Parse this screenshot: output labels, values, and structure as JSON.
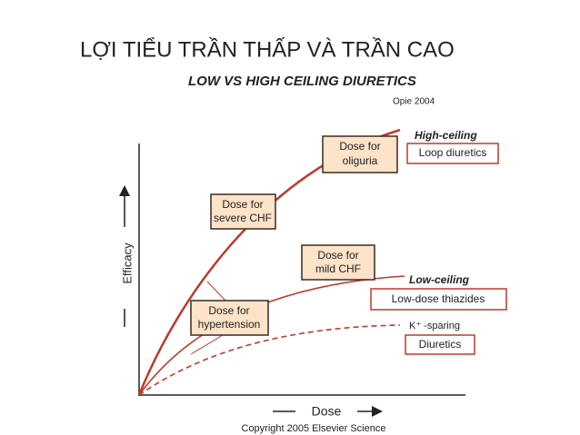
{
  "header": {
    "title": "LỢI TIỂU TRẦN THẤP VÀ TRẦN CAO"
  },
  "figure": {
    "title": "LOW VS HIGH CEILING DIURETICS",
    "source": "Opie 2004",
    "y_axis_label": "Efficacy",
    "x_axis_label": "Dose",
    "copyright": "Copyright 2005 Elsevier Science",
    "dose_boxes": [
      {
        "lines": [
          "Dose for",
          "oliguria"
        ]
      },
      {
        "lines": [
          "Dose for",
          "severe CHF"
        ]
      },
      {
        "lines": [
          "Dose for",
          "mild CHF"
        ]
      },
      {
        "lines": [
          "Dose for",
          "hypertension"
        ]
      }
    ],
    "curves": [
      {
        "label": "High-ceiling",
        "box": "Loop diuretics"
      },
      {
        "label": "Low-ceiling",
        "box": "Low-dose thiazides"
      },
      {
        "label": "K⁺ -sparing",
        "box": "Diuretics"
      }
    ]
  }
}
